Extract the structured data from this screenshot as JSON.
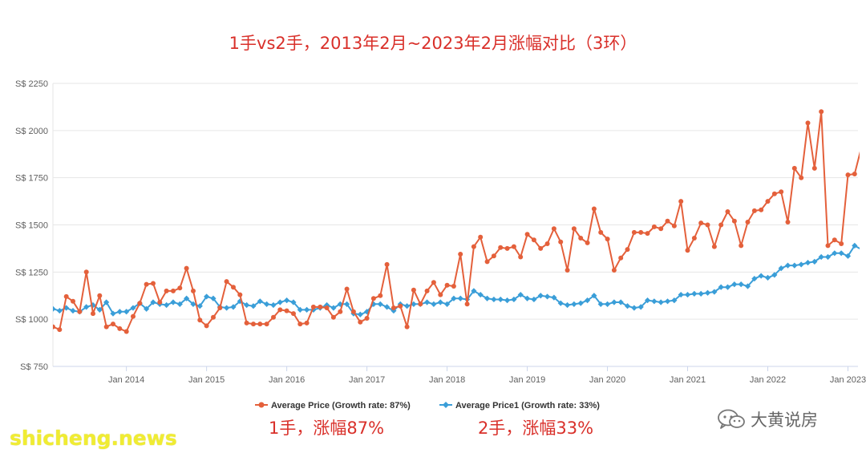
{
  "title": "1手vs2手，2013年2月~2023年2月涨幅对比（3环）",
  "captions": {
    "new": "1手，涨幅87%",
    "resale": "2手，涨幅33%"
  },
  "watermarks": {
    "left": "shicheng.news",
    "right": "大黄说房",
    "right_icon": "wechat-icon"
  },
  "colors": {
    "series_new": "#e4603b",
    "series_resale": "#3a9ed8",
    "title": "#d9302a"
  },
  "chart_data": {
    "type": "line",
    "title": "",
    "xlabel": "",
    "ylabel": "",
    "y_tick_labels": [
      "S$ 750",
      "S$ 1000",
      "S$ 1250",
      "S$ 1500",
      "S$ 1750",
      "S$ 2000",
      "S$ 2250"
    ],
    "y_ticks": [
      750,
      1000,
      1250,
      1500,
      1750,
      2000,
      2250
    ],
    "ylim": [
      750,
      2250
    ],
    "x_tick_labels": [
      "Jan 2014",
      "Jan 2015",
      "Jan 2016",
      "Jan 2017",
      "Jan 2018",
      "Jan 2019",
      "Jan 2020",
      "Jan 2021",
      "Jan 2022",
      "Jan 2023"
    ],
    "x_start": "2013-02",
    "x_end": "2023-02",
    "x_step": "month",
    "grid": true,
    "legend_position": "bottom",
    "series": [
      {
        "name": "Average Price (Growth rate: 87%)",
        "values": [
          960,
          945,
          1120,
          1095,
          1040,
          1250,
          1030,
          1125,
          960,
          975,
          950,
          935,
          1015,
          1085,
          1185,
          1190,
          1090,
          1150,
          1150,
          1165,
          1270,
          1150,
          995,
          965,
          1010,
          1060,
          1200,
          1170,
          1130,
          980,
          975,
          975,
          975,
          1010,
          1050,
          1045,
          1030,
          975,
          980,
          1065,
          1065,
          1060,
          1010,
          1040,
          1160,
          1040,
          985,
          1005,
          1110,
          1125,
          1290,
          1060,
          1070,
          960,
          1155,
          1080,
          1150,
          1195,
          1130,
          1180,
          1175,
          1345,
          1080,
          1385,
          1435,
          1305,
          1335,
          1380,
          1375,
          1385,
          1330,
          1450,
          1420,
          1375,
          1400,
          1480,
          1410,
          1260,
          1480,
          1430,
          1405,
          1585,
          1460,
          1425,
          1260,
          1325,
          1370,
          1460,
          1460,
          1455,
          1490,
          1480,
          1520,
          1495,
          1625,
          1365,
          1430,
          1510,
          1500,
          1385,
          1500,
          1570,
          1520,
          1390,
          1515,
          1575,
          1580,
          1625,
          1665,
          1675,
          1515,
          1800,
          1750,
          2040,
          1800,
          2100,
          1390,
          1420,
          1400,
          1765,
          1770,
          1910
        ]
      },
      {
        "name": "Average Price1 (Growth rate: 33%)",
        "values": [
          1055,
          1045,
          1060,
          1045,
          1040,
          1065,
          1075,
          1050,
          1090,
          1030,
          1040,
          1040,
          1060,
          1085,
          1055,
          1090,
          1080,
          1075,
          1090,
          1080,
          1110,
          1080,
          1070,
          1120,
          1110,
          1065,
          1060,
          1065,
          1095,
          1075,
          1070,
          1095,
          1080,
          1075,
          1090,
          1100,
          1090,
          1050,
          1050,
          1050,
          1060,
          1075,
          1060,
          1080,
          1080,
          1030,
          1025,
          1040,
          1080,
          1080,
          1065,
          1045,
          1080,
          1070,
          1080,
          1080,
          1090,
          1080,
          1090,
          1080,
          1110,
          1110,
          1105,
          1150,
          1130,
          1110,
          1105,
          1105,
          1100,
          1105,
          1130,
          1110,
          1105,
          1125,
          1120,
          1115,
          1085,
          1075,
          1080,
          1085,
          1100,
          1125,
          1080,
          1080,
          1090,
          1090,
          1070,
          1060,
          1065,
          1100,
          1095,
          1090,
          1095,
          1100,
          1130,
          1130,
          1135,
          1135,
          1140,
          1145,
          1170,
          1170,
          1185,
          1185,
          1175,
          1215,
          1230,
          1220,
          1235,
          1270,
          1285,
          1285,
          1290,
          1300,
          1305,
          1330,
          1330,
          1350,
          1350,
          1335,
          1390,
          1370
        ]
      }
    ]
  }
}
